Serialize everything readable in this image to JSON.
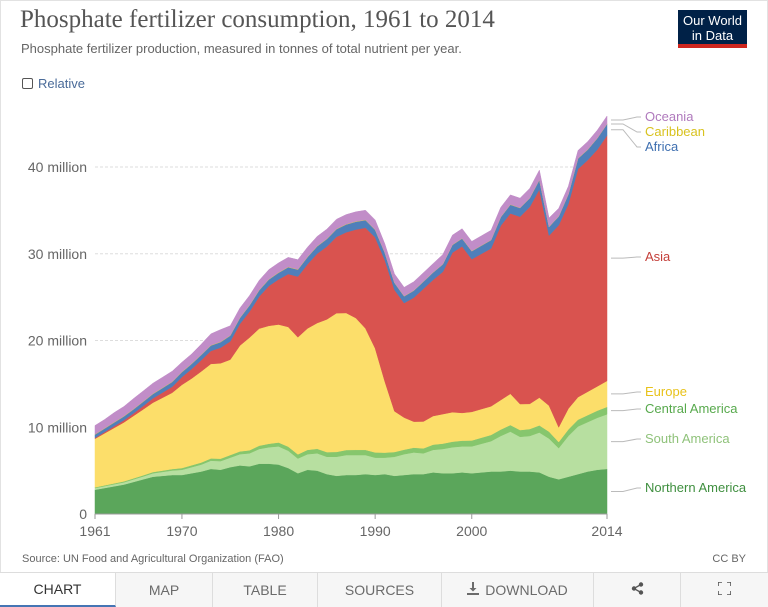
{
  "header": {
    "title": "Phosphate fertilizer consumption, 1961 to 2014",
    "subtitle": "Phosphate fertilizer production, measured in tonnes of total nutrient per year.",
    "logo_line1": "Our World",
    "logo_line2": "in Data",
    "relative_label": "Relative"
  },
  "footer": {
    "source": "Source: UN Food and Agricultural Organization (FAO)",
    "license": "CC BY"
  },
  "tabs": [
    {
      "label": "CHART",
      "active": true
    },
    {
      "label": "MAP"
    },
    {
      "label": "TABLE"
    },
    {
      "label": "SOURCES"
    },
    {
      "label": "DOWNLOAD",
      "icon": "download-icon"
    },
    {
      "label": "",
      "icon": "share-icon"
    },
    {
      "label": "",
      "icon": "fullscreen-icon"
    }
  ],
  "chart_data": {
    "type": "area",
    "stacked": true,
    "title": "Phosphate fertilizer consumption, 1961 to 2014",
    "ylim": [
      0,
      46000000
    ],
    "yticks": [
      0,
      10000000,
      20000000,
      30000000,
      40000000
    ],
    "ytick_labels": [
      "0",
      "10 million",
      "20 million",
      "30 million",
      "40 million"
    ],
    "xticks": [
      1961,
      1970,
      1980,
      1990,
      2000,
      2014
    ],
    "grid": "horizontal dashed",
    "legend_position": "right, labels at series ends",
    "x": [
      1961,
      1962,
      1963,
      1964,
      1965,
      1966,
      1967,
      1968,
      1969,
      1970,
      1971,
      1972,
      1973,
      1974,
      1975,
      1976,
      1977,
      1978,
      1979,
      1980,
      1981,
      1982,
      1983,
      1984,
      1985,
      1986,
      1987,
      1988,
      1989,
      1990,
      1991,
      1992,
      1993,
      1994,
      1995,
      1996,
      1997,
      1998,
      1999,
      2000,
      2001,
      2002,
      2003,
      2004,
      2005,
      2006,
      2007,
      2008,
      2009,
      2010,
      2011,
      2012,
      2013,
      2014
    ],
    "series": [
      {
        "name": "Northern America",
        "color": "#5ba65b",
        "values": [
          2.8,
          3.0,
          3.2,
          3.4,
          3.7,
          4.0,
          4.3,
          4.4,
          4.5,
          4.5,
          4.7,
          4.9,
          5.2,
          5.1,
          5.4,
          5.6,
          5.5,
          5.8,
          5.8,
          5.7,
          5.3,
          4.7,
          5.1,
          5.0,
          4.6,
          4.4,
          4.5,
          4.5,
          4.6,
          4.5,
          4.6,
          4.4,
          4.5,
          4.6,
          4.6,
          4.8,
          4.7,
          4.7,
          4.8,
          4.7,
          4.8,
          4.9,
          4.9,
          5.0,
          4.9,
          4.9,
          4.8,
          4.3,
          4.0,
          4.3,
          4.6,
          4.9,
          5.1,
          5.2
        ]
      },
      {
        "name": "South America",
        "color": "#b7dfa0",
        "values": [
          0.2,
          0.22,
          0.24,
          0.26,
          0.3,
          0.34,
          0.4,
          0.46,
          0.52,
          0.6,
          0.7,
          0.8,
          0.95,
          1.0,
          1.1,
          1.3,
          1.5,
          1.7,
          1.9,
          2.1,
          2.0,
          1.7,
          1.8,
          2.0,
          2.0,
          2.2,
          2.3,
          2.3,
          2.2,
          2.0,
          1.9,
          2.2,
          2.4,
          2.5,
          2.4,
          2.6,
          2.8,
          3.0,
          3.0,
          3.1,
          3.3,
          3.5,
          4.1,
          4.5,
          4.0,
          4.1,
          4.6,
          4.4,
          3.6,
          4.7,
          5.5,
          5.7,
          6.0,
          6.3
        ]
      },
      {
        "name": "Central America",
        "color": "#86c66d",
        "values": [
          0.08,
          0.09,
          0.1,
          0.11,
          0.12,
          0.13,
          0.14,
          0.15,
          0.17,
          0.2,
          0.22,
          0.24,
          0.26,
          0.28,
          0.3,
          0.32,
          0.35,
          0.38,
          0.4,
          0.45,
          0.47,
          0.48,
          0.5,
          0.52,
          0.54,
          0.56,
          0.58,
          0.6,
          0.6,
          0.6,
          0.58,
          0.55,
          0.52,
          0.55,
          0.57,
          0.6,
          0.62,
          0.64,
          0.66,
          0.68,
          0.7,
          0.72,
          0.74,
          0.76,
          0.78,
          0.8,
          0.82,
          0.8,
          0.7,
          0.75,
          0.78,
          0.8,
          0.82,
          0.85
        ]
      },
      {
        "name": "Europe",
        "color": "#fcde6a",
        "values": [
          5.6,
          6.0,
          6.4,
          6.8,
          7.2,
          7.6,
          8.0,
          8.4,
          8.8,
          9.6,
          10.0,
          10.5,
          10.9,
          11.0,
          11.0,
          12.2,
          13.0,
          13.5,
          13.6,
          13.6,
          13.8,
          13.5,
          14.0,
          14.5,
          15.3,
          16.0,
          15.8,
          15.2,
          14.0,
          12.0,
          8.2,
          4.7,
          3.7,
          3.0,
          3.1,
          3.3,
          3.4,
          3.4,
          3.2,
          3.3,
          3.3,
          3.3,
          3.4,
          3.6,
          3.0,
          2.9,
          3.2,
          3.0,
          1.7,
          2.4,
          2.6,
          2.7,
          2.8,
          3.0
        ]
      },
      {
        "name": "Asia",
        "color": "#d9534f",
        "values": [
          0.1,
          0.15,
          0.2,
          0.25,
          0.3,
          0.4,
          0.5,
          0.6,
          0.7,
          0.9,
          1.1,
          1.3,
          1.5,
          1.8,
          2.1,
          2.5,
          3.0,
          3.7,
          4.6,
          5.2,
          6.1,
          7.0,
          7.4,
          8.0,
          8.4,
          8.8,
          9.3,
          10.2,
          11.6,
          12.8,
          14.0,
          14.0,
          13.2,
          14.3,
          15.3,
          15.7,
          16.4,
          18.4,
          19.2,
          17.6,
          17.9,
          18.2,
          20.1,
          20.8,
          21.6,
          22.7,
          24.0,
          19.6,
          23.3,
          23.6,
          26.3,
          26.7,
          27.3,
          28.3
        ]
      },
      {
        "name": "Africa",
        "color": "#4f7fba",
        "values": [
          0.38,
          0.4,
          0.42,
          0.44,
          0.46,
          0.48,
          0.5,
          0.52,
          0.54,
          0.56,
          0.58,
          0.6,
          0.62,
          0.64,
          0.66,
          0.68,
          0.7,
          0.72,
          0.74,
          0.76,
          0.78,
          0.8,
          0.82,
          0.84,
          0.86,
          0.88,
          0.9,
          0.9,
          0.88,
          0.86,
          0.84,
          0.8,
          0.78,
          0.8,
          0.82,
          0.84,
          0.86,
          0.88,
          0.9,
          0.92,
          0.94,
          0.96,
          0.98,
          1.0,
          1.0,
          1.0,
          1.1,
          1.0,
          1.0,
          1.1,
          1.2,
          1.2,
          1.3,
          1.3
        ]
      },
      {
        "name": "Caribbean",
        "color": "#e3cf3a",
        "values": [
          0.04,
          0.04,
          0.04,
          0.04,
          0.04,
          0.04,
          0.04,
          0.04,
          0.04,
          0.04,
          0.04,
          0.04,
          0.04,
          0.04,
          0.04,
          0.04,
          0.04,
          0.04,
          0.04,
          0.04,
          0.04,
          0.04,
          0.04,
          0.04,
          0.04,
          0.04,
          0.04,
          0.04,
          0.04,
          0.04,
          0.03,
          0.03,
          0.03,
          0.03,
          0.03,
          0.03,
          0.03,
          0.03,
          0.03,
          0.03,
          0.03,
          0.03,
          0.03,
          0.03,
          0.03,
          0.03,
          0.03,
          0.03,
          0.03,
          0.03,
          0.03,
          0.03,
          0.03,
          0.03
        ]
      },
      {
        "name": "Oceania",
        "color": "#c18dc8",
        "values": [
          1.0,
          1.0,
          1.1,
          1.1,
          1.2,
          1.2,
          1.2,
          1.2,
          1.2,
          1.1,
          1.1,
          1.2,
          1.3,
          1.4,
          1.1,
          1.1,
          1.1,
          1.1,
          1.1,
          1.1,
          1.1,
          1.1,
          1.1,
          1.1,
          1.1,
          1.1,
          1.1,
          1.1,
          1.1,
          1.1,
          1.0,
          1.0,
          1.0,
          1.0,
          1.0,
          1.0,
          1.1,
          1.1,
          1.1,
          1.1,
          1.1,
          1.1,
          1.1,
          1.1,
          1.1,
          1.1,
          1.1,
          1.0,
          0.9,
          0.9,
          0.9,
          0.9,
          0.9,
          0.9
        ]
      }
    ],
    "values_unit": "million tonnes"
  }
}
